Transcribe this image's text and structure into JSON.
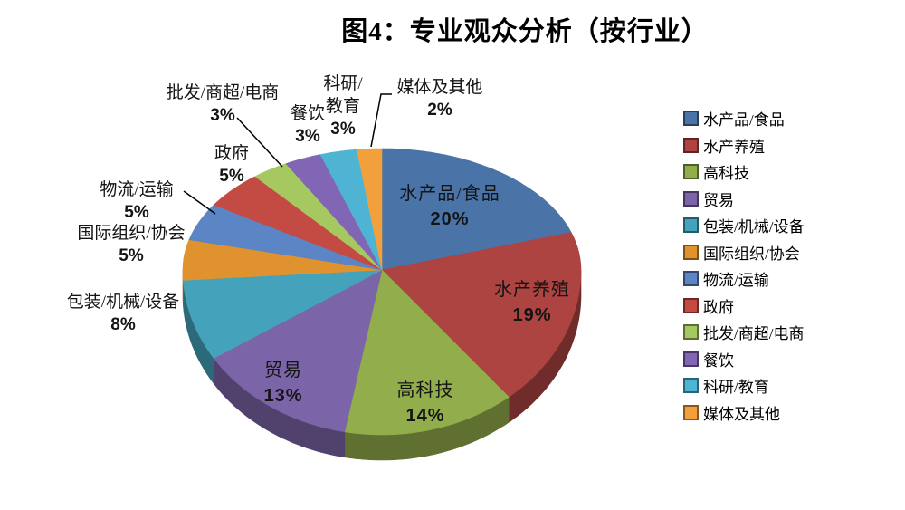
{
  "title": "图4：专业观众分析（按行业）",
  "chart_data": {
    "type": "pie",
    "style": "3d",
    "title": "图4：专业观众分析（按行业）",
    "unit": "%",
    "start_angle_deg": 0,
    "direction": "clockwise",
    "legend_position": "right",
    "data_label_format": "category name + percent",
    "categories": [
      "水产品/食品",
      "水产养殖",
      "高科技",
      "贸易",
      "包装/机械/设备",
      "国际组织/协会",
      "物流/运输",
      "政府",
      "批发/商超/电商",
      "餐饮",
      "科研/教育",
      "媒体及其他"
    ],
    "values": [
      20,
      19,
      14,
      13,
      8,
      5,
      5,
      5,
      3,
      3,
      3,
      2
    ],
    "percent_labels": [
      "20%",
      "19%",
      "14%",
      "13%",
      "8%",
      "5%",
      "5%",
      "5%",
      "3%",
      "3%",
      "3%",
      "2%"
    ],
    "colors": [
      "#4a74a8",
      "#ad4441",
      "#92ad4b",
      "#7b64a8",
      "#44a3bb",
      "#e0922f",
      "#5b85c4",
      "#c44a44",
      "#a6c860",
      "#8066b4",
      "#4fb3d4",
      "#f2a03c"
    ]
  }
}
